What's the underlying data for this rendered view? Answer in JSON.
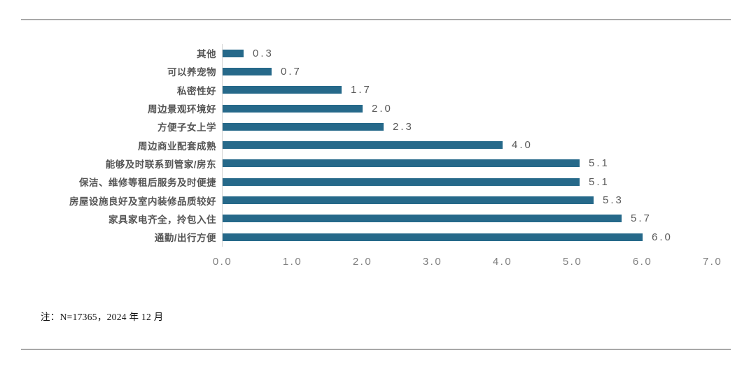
{
  "chart_data": {
    "type": "bar",
    "orientation": "horizontal",
    "title": "",
    "xlabel": "",
    "ylabel": "",
    "xlim": [
      0.0,
      7.0
    ],
    "grid": false,
    "legend": false,
    "bar_color": "#26698A",
    "categories": [
      "其他",
      "可以养宠物",
      "私密性好",
      "周边景观环境好",
      "方便子女上学",
      "周边商业配套成熟",
      "能够及时联系到管家/房东",
      "保洁、维修等租后服务及时便捷",
      "房屋设施良好及室内装修品质较好",
      "家具家电齐全，拎包入住",
      "通勤/出行方便"
    ],
    "values": [
      0.3,
      0.7,
      1.7,
      2.0,
      2.3,
      4.0,
      5.1,
      5.1,
      5.3,
      5.7,
      6.0
    ],
    "value_labels": [
      "0.3",
      "0.7",
      "1.7",
      "2.0",
      "2.3",
      "4.0",
      "5.1",
      "5.1",
      "5.3",
      "5.7",
      "6.0"
    ],
    "x_tick_labels": [
      "0.0",
      "1.0",
      "2.0",
      "3.0",
      "4.0",
      "5.0",
      "6.0",
      "7.0"
    ]
  },
  "note": {
    "text": "注：N=17365，2024 年 12 月"
  }
}
